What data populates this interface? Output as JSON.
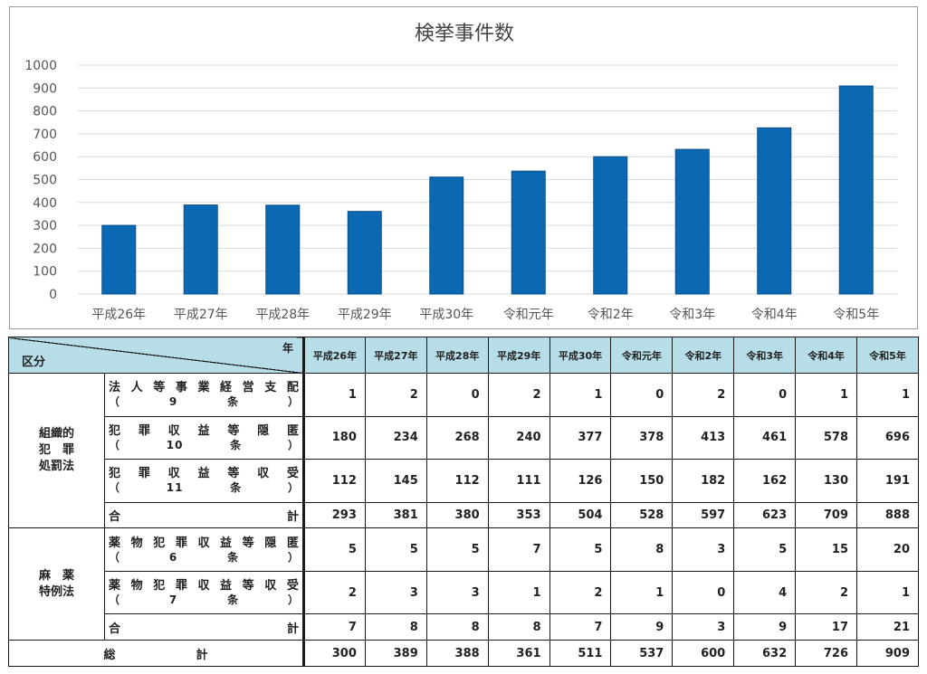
{
  "chart_data": {
    "type": "bar",
    "title": "検挙事件数",
    "categories": [
      "平成26年",
      "平成27年",
      "平成28年",
      "平成29年",
      "平成30年",
      "令和元年",
      "令和2年",
      "令和3年",
      "令和4年",
      "令和5年"
    ],
    "values": [
      300,
      389,
      388,
      361,
      511,
      537,
      600,
      632,
      726,
      909
    ],
    "ylim": [
      0,
      1000
    ],
    "yticks": [
      "0",
      "100",
      "200",
      "300",
      "400",
      "500",
      "600",
      "700",
      "800",
      "900",
      "1000"
    ],
    "grid": true,
    "bar_color": "#0b68b3"
  },
  "table": {
    "header_year": "年",
    "header_kubun": "区分",
    "years": [
      "平成26年",
      "平成27年",
      "平成28年",
      "平成29年",
      "平成30年",
      "令和元年",
      "令和2年",
      "令和3年",
      "令和4年",
      "令和5年"
    ],
    "group1": {
      "label_lines": [
        "組織的",
        "犯　罪",
        "処罰法"
      ],
      "rows": [
        {
          "line1": [
            "法",
            "人",
            "等",
            "事",
            "業",
            "経",
            "営",
            "支",
            "配"
          ],
          "line2": [
            "（",
            "9",
            "条",
            "）"
          ],
          "values": [
            1,
            2,
            0,
            2,
            1,
            0,
            2,
            0,
            1,
            1
          ]
        },
        {
          "line1": [
            "犯",
            "罪",
            "収",
            "益",
            "等",
            "隠",
            "匿"
          ],
          "line2": [
            "（",
            "10",
            "条",
            "）"
          ],
          "values": [
            180,
            234,
            268,
            240,
            377,
            378,
            413,
            461,
            578,
            696
          ]
        },
        {
          "line1": [
            "犯",
            "罪",
            "収",
            "益",
            "等",
            "収",
            "受"
          ],
          "line2": [
            "（",
            "11",
            "条",
            "）"
          ],
          "values": [
            112,
            145,
            112,
            111,
            126,
            150,
            182,
            162,
            130,
            191
          ]
        }
      ],
      "subtotal_label": [
        "合",
        "計"
      ],
      "subtotal": [
        293,
        381,
        380,
        353,
        504,
        528,
        597,
        623,
        709,
        888
      ]
    },
    "group2": {
      "label_lines": [
        "麻　薬",
        "特例法"
      ],
      "rows": [
        {
          "line1": [
            "薬",
            "物",
            "犯",
            "罪",
            "収",
            "益",
            "等",
            "隠",
            "匿"
          ],
          "line2": [
            "（",
            "6",
            "条",
            "）"
          ],
          "values": [
            5,
            5,
            5,
            7,
            5,
            8,
            3,
            5,
            15,
            20
          ]
        },
        {
          "line1": [
            "薬",
            "物",
            "犯",
            "罪",
            "収",
            "益",
            "等",
            "収",
            "受"
          ],
          "line2": [
            "（",
            "7",
            "条",
            "）"
          ],
          "values": [
            2,
            3,
            3,
            1,
            2,
            1,
            0,
            4,
            2,
            1
          ]
        }
      ],
      "subtotal_label": [
        "合",
        "計"
      ],
      "subtotal": [
        7,
        8,
        8,
        8,
        7,
        9,
        3,
        9,
        17,
        21
      ]
    },
    "grand_label": [
      "総",
      "計"
    ],
    "grand_total": [
      300,
      389,
      388,
      361,
      511,
      537,
      600,
      632,
      726,
      909
    ]
  }
}
